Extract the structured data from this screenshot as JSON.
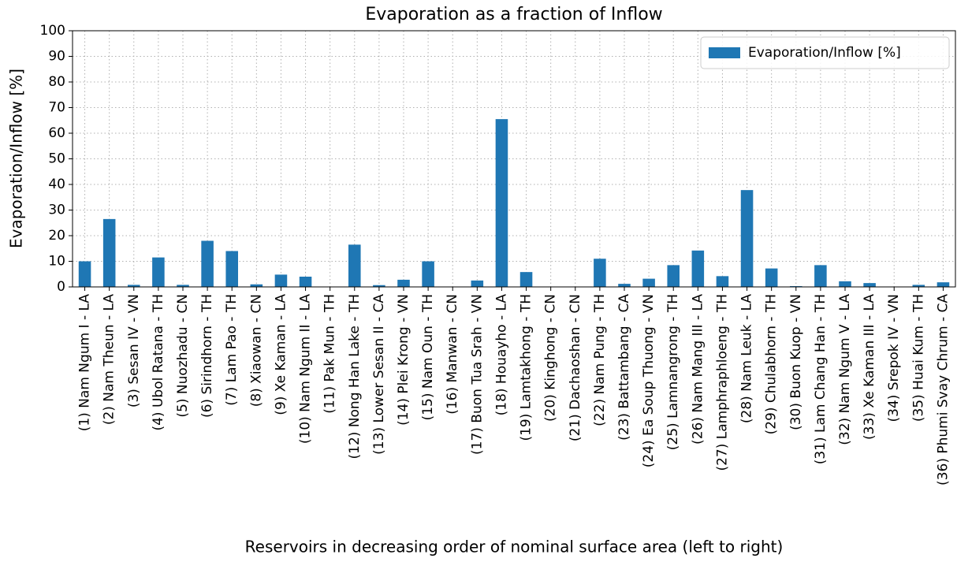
{
  "chart_data": {
    "type": "bar",
    "title": "Evaporation as a fraction of Inflow",
    "x_label": "Reservoirs in decreasing order of nominal surface area (left to right)",
    "y_label": "Evaporation/Inflow [%]",
    "categories": [
      "(1) Nam Ngum I - LA",
      "(2) Nam Theun - LA",
      "(3) Sesan IV - VN",
      "(4) Ubol Ratana - TH",
      "(5) Nuozhadu - CN",
      "(6) Sirindhorn - TH",
      "(7) Lam Pao - TH",
      "(8) Xiaowan - CN",
      "(9) Xe Kaman - LA",
      "(10) Nam Ngum II - LA",
      "(11) Pak Mun - TH",
      "(12) Nong Han Lake - TH",
      "(13) Lower Sesan II - CA",
      "(14) Plei Krong - VN",
      "(15) Nam Oun - TH",
      "(16) Manwan - CN",
      "(17) Buon Tua Srah - VN",
      "(18) Houayho - LA",
      "(19) Lamtakhong - TH",
      "(20) Kinghong - CN",
      "(21) Dachaoshan - CN",
      "(22) Nam Pung - TH",
      "(23) Battambang - CA",
      "(24) Ea Soup Thuong - VN",
      "(25) Lamnangrong - TH",
      "(26) Nam Mang III - LA",
      "(27) Lamphraphloeng - TH",
      "(28) Nam Leuk - LA",
      "(29) Chulabhorn - TH",
      "(30) Buon Kuop - VN",
      "(31) Lam Chang Han - TH",
      "(32) Nam Ngum V - LA",
      "(33) Xe Kaman III - LA",
      "(34) Srepok IV - VN",
      "(35) Huai Kum - TH",
      "(36) Phumi Svay Chrum - CA"
    ],
    "series": [
      {
        "name": "Evaporation/Inflow [%]",
        "color": "#1f77b4",
        "values": [
          10,
          26.5,
          0.8,
          11.5,
          0.8,
          18,
          14,
          1,
          4.8,
          4,
          0,
          16.5,
          0.7,
          2.8,
          10,
          0,
          2.5,
          65.5,
          5.8,
          0,
          0,
          11,
          1.2,
          3.2,
          8.5,
          14.2,
          4.2,
          37.8,
          7.2,
          0.3,
          8.5,
          2.2,
          1.5,
          0,
          0.8,
          1.8
        ]
      }
    ],
    "ylim": [
      0,
      100
    ],
    "yticks": [
      0,
      10,
      20,
      30,
      40,
      50,
      60,
      70,
      80,
      90,
      100
    ],
    "grid": true,
    "legend": "upper right"
  }
}
